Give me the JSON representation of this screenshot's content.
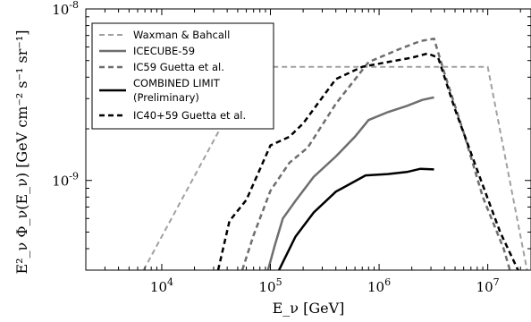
{
  "chart_data": {
    "type": "line",
    "xlabel": "E_ν [GeV]",
    "ylabel": "E²_ν Φ_ν(E_ν) [GeV cm⁻² s⁻¹ sr⁻¹]",
    "xscale": "log",
    "yscale": "log",
    "xlim": [
      2000,
      25000000
    ],
    "ylim": [
      3e-10,
      1e-08
    ],
    "x_ticks": [
      {
        "value": 10000,
        "base": "10",
        "exp": "4"
      },
      {
        "value": 100000,
        "base": "10",
        "exp": "5"
      },
      {
        "value": 1000000,
        "base": "10",
        "exp": "6"
      },
      {
        "value": 10000000,
        "base": "10",
        "exp": "7"
      }
    ],
    "y_ticks": [
      {
        "value": 1e-09,
        "base": "10",
        "exp": "-9"
      },
      {
        "value": 1e-08,
        "base": "10",
        "exp": "-8"
      }
    ],
    "grid": false,
    "legend_position": "top-left",
    "series": [
      {
        "name": "Waxman & Bahcall",
        "color": "#a0a0a0",
        "dash": "dashed",
        "width": 2,
        "points": [
          [
            6800,
            3e-10
          ],
          [
            70000,
            4.6e-09
          ],
          [
            10000000,
            4.6e-09
          ],
          [
            23000000,
            3e-10
          ]
        ]
      },
      {
        "name": "ICECUBE-59",
        "color": "#6e6e6e",
        "dash": "solid",
        "width": 2.5,
        "points": [
          [
            95000,
            3e-10
          ],
          [
            110000,
            4.2e-10
          ],
          [
            130000,
            6e-10
          ],
          [
            170000,
            7.6e-10
          ],
          [
            250000,
            1.05e-09
          ],
          [
            400000,
            1.38e-09
          ],
          [
            600000,
            1.8e-09
          ],
          [
            800000,
            2.25e-09
          ],
          [
            1200000,
            2.5e-09
          ],
          [
            1800000,
            2.72e-09
          ],
          [
            2500000,
            2.95e-09
          ],
          [
            3200000,
            3.05e-09
          ]
        ]
      },
      {
        "name": "IC59 Guetta et al.",
        "color": "#6e6e6e",
        "dash": "dashed",
        "width": 2.5,
        "points": [
          [
            55000,
            3e-10
          ],
          [
            70000,
            4.8e-10
          ],
          [
            100000,
            8.7e-10
          ],
          [
            150000,
            1.27e-09
          ],
          [
            220000,
            1.55e-09
          ],
          [
            400000,
            2.8e-09
          ],
          [
            800000,
            4.9e-09
          ],
          [
            1500000,
            5.8e-09
          ],
          [
            2400000,
            6.5e-09
          ],
          [
            3200000,
            6.7e-09
          ],
          [
            4000000,
            4.2e-09
          ],
          [
            6000000,
            1.9e-09
          ],
          [
            9000000,
            8e-10
          ],
          [
            14000000,
            4e-10
          ],
          [
            16000000,
            3e-10
          ]
        ]
      },
      {
        "name": "COMBINED LIMIT",
        "sublabel": "(Preliminary)",
        "color": "#000000",
        "dash": "solid",
        "width": 2.5,
        "points": [
          [
            120000,
            3e-10
          ],
          [
            135000,
            3.5e-10
          ],
          [
            170000,
            4.7e-10
          ],
          [
            250000,
            6.5e-10
          ],
          [
            400000,
            8.6e-10
          ],
          [
            750000,
            1.07e-09
          ],
          [
            1200000,
            1.09e-09
          ],
          [
            1800000,
            1.12e-09
          ],
          [
            2400000,
            1.17e-09
          ],
          [
            3200000,
            1.16e-09
          ]
        ]
      },
      {
        "name": "IC40+59 Guetta et al.",
        "color": "#000000",
        "dash": "dashed",
        "width": 2.5,
        "points": [
          [
            33000,
            3e-10
          ],
          [
            42000,
            5.8e-10
          ],
          [
            60000,
            7.7e-10
          ],
          [
            100000,
            1.6e-09
          ],
          [
            150000,
            1.8e-09
          ],
          [
            200000,
            2.15e-09
          ],
          [
            400000,
            3.9e-09
          ],
          [
            700000,
            4.6e-09
          ],
          [
            1200000,
            4.9e-09
          ],
          [
            2000000,
            5.2e-09
          ],
          [
            2800000,
            5.5e-09
          ],
          [
            3500000,
            5.2e-09
          ],
          [
            5000000,
            2.6e-09
          ],
          [
            8000000,
            1.15e-09
          ],
          [
            13000000,
            5e-10
          ],
          [
            19000000,
            3e-10
          ]
        ]
      }
    ]
  }
}
